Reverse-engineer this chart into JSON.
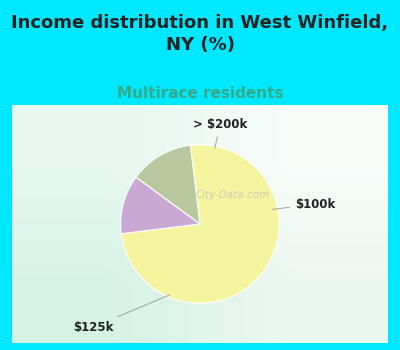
{
  "title": "Income distribution in West Winfield,\nNY (%)",
  "subtitle": "Multirace residents",
  "slices": [
    75,
    12,
    13
  ],
  "labels": [
    "$125k",
    "> $200k",
    "$100k"
  ],
  "colors": [
    "#f5f5a0",
    "#c9a8d4",
    "#b8c9a0"
  ],
  "title_fontsize": 13,
  "subtitle_fontsize": 11,
  "subtitle_color": "#33aa88",
  "title_color": "#222222",
  "bg_color_top": "#00e8ff",
  "startangle": 97,
  "watermark": "City-Data.com",
  "bg_gradient": [
    [
      [
        0.84,
        0.95,
        0.9
      ],
      [
        0.92,
        0.97,
        0.94
      ]
    ],
    [
      [
        0.9,
        0.97,
        0.94
      ],
      [
        0.97,
        0.99,
        0.98
      ]
    ]
  ]
}
